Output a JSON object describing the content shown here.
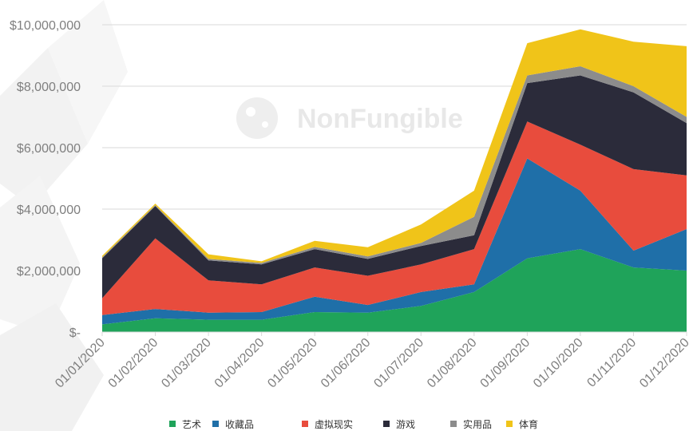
{
  "watermark": {
    "text": "NonFungible"
  },
  "chart_data": {
    "type": "area",
    "stacked": true,
    "title": "",
    "xlabel": "",
    "ylabel": "",
    "categories": [
      "01/01/2020",
      "01/02/2020",
      "01/03/2020",
      "01/04/2020",
      "01/05/2020",
      "01/06/2020",
      "01/07/2020",
      "01/08/2020",
      "01/09/2020",
      "01/10/2020",
      "01/11/2020",
      "01/12/2020"
    ],
    "ylim": [
      0,
      10000000
    ],
    "yticks": [
      {
        "value": 0,
        "label": "$-"
      },
      {
        "value": 2000000,
        "label": "$2,000,000"
      },
      {
        "value": 4000000,
        "label": "$4,000,000"
      },
      {
        "value": 6000000,
        "label": "$6,000,000"
      },
      {
        "value": 8000000,
        "label": "$8,000,000"
      },
      {
        "value": 10000000,
        "label": "$10,000,000"
      }
    ],
    "grid": true,
    "legend_position": "bottom",
    "series": [
      {
        "name": "艺术",
        "color": "#1fa35a",
        "values": [
          250000,
          450000,
          400000,
          400000,
          650000,
          630000,
          850000,
          1300000,
          2400000,
          2700000,
          2100000,
          2000000
        ]
      },
      {
        "name": "收藏品",
        "color": "#1f6fa8",
        "values": [
          300000,
          300000,
          230000,
          250000,
          500000,
          250000,
          450000,
          250000,
          3250000,
          1900000,
          550000,
          1350000
        ]
      },
      {
        "name": "虚拟现实",
        "color": "#e84c3d",
        "values": [
          550000,
          2300000,
          1050000,
          900000,
          950000,
          950000,
          900000,
          1150000,
          1200000,
          1500000,
          2650000,
          1750000
        ]
      },
      {
        "name": "游戏",
        "color": "#2b2b3a",
        "values": [
          1300000,
          1050000,
          650000,
          650000,
          600000,
          550000,
          600000,
          450000,
          1250000,
          2250000,
          2500000,
          1700000
        ]
      },
      {
        "name": "实用品",
        "color": "#8c8c8c",
        "values": [
          30000,
          30000,
          50000,
          50000,
          70000,
          80000,
          100000,
          600000,
          250000,
          300000,
          200000,
          200000
        ]
      },
      {
        "name": "体育",
        "color": "#f0c419",
        "values": [
          50000,
          50000,
          150000,
          50000,
          200000,
          300000,
          600000,
          850000,
          1050000,
          1200000,
          1450000,
          2300000
        ]
      }
    ]
  }
}
